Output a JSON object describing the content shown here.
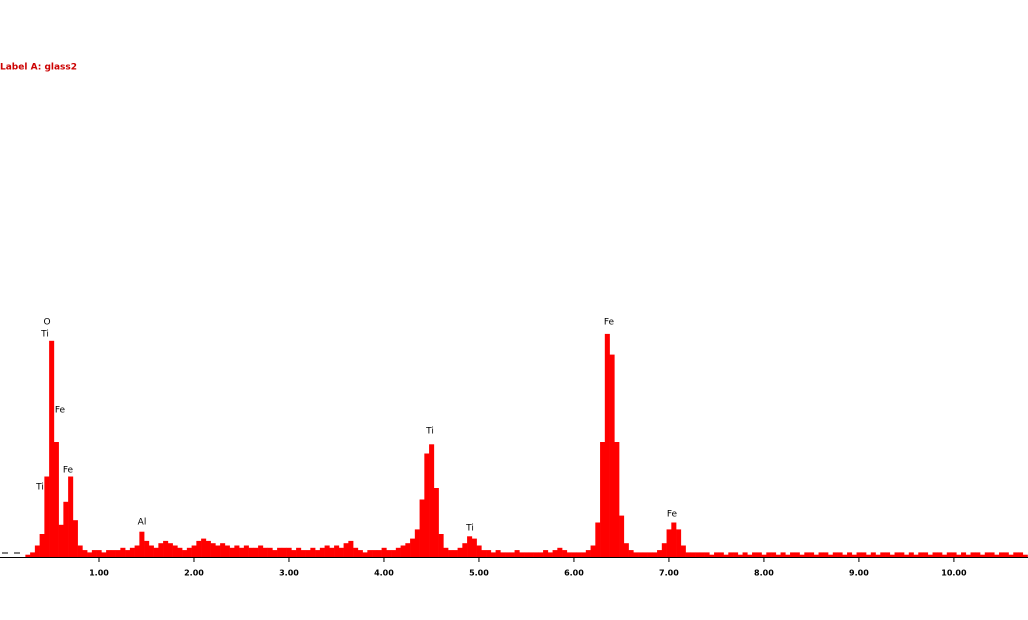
{
  "chart_data": {
    "type": "spectrum",
    "title": "Label A: glass2",
    "color": "#ff0000",
    "xlim": [
      0,
      10.78
    ],
    "ylim": [
      0,
      100
    ],
    "xticks": [
      {
        "value": 1,
        "label": "1.00"
      },
      {
        "value": 2,
        "label": "2.00"
      },
      {
        "value": 3,
        "label": "3.00"
      },
      {
        "value": 4,
        "label": "4.00"
      },
      {
        "value": 5,
        "label": "5.00"
      },
      {
        "value": 6,
        "label": "6.00"
      },
      {
        "value": 7,
        "label": "7.00"
      },
      {
        "value": 8,
        "label": "8.00"
      },
      {
        "value": 9,
        "label": "9.00"
      },
      {
        "value": 10,
        "label": "10.00"
      }
    ],
    "annotations": [
      "O",
      "Ti",
      "Fe",
      "Fe",
      "Ti",
      "Al",
      "Ti",
      "Ti",
      "Fe",
      "Fe"
    ],
    "x": [
      0.25,
      0.3,
      0.35,
      0.4,
      0.45,
      0.5,
      0.55,
      0.6,
      0.65,
      0.7,
      0.75,
      0.8,
      0.85,
      0.9,
      0.95,
      1.0,
      1.05,
      1.1,
      1.15,
      1.2,
      1.25,
      1.3,
      1.35,
      1.4,
      1.45,
      1.5,
      1.55,
      1.6,
      1.65,
      1.7,
      1.75,
      1.8,
      1.85,
      1.9,
      1.95,
      2.0,
      2.05,
      2.1,
      2.15,
      2.2,
      2.25,
      2.3,
      2.35,
      2.4,
      2.45,
      2.5,
      2.55,
      2.6,
      2.65,
      2.7,
      2.75,
      2.8,
      2.85,
      2.9,
      2.95,
      3.0,
      3.05,
      3.1,
      3.15,
      3.2,
      3.25,
      3.3,
      3.35,
      3.4,
      3.45,
      3.5,
      3.55,
      3.6,
      3.65,
      3.7,
      3.75,
      3.8,
      3.85,
      3.9,
      3.95,
      4.0,
      4.05,
      4.1,
      4.15,
      4.2,
      4.25,
      4.3,
      4.35,
      4.4,
      4.45,
      4.5,
      4.55,
      4.6,
      4.65,
      4.7,
      4.75,
      4.8,
      4.85,
      4.9,
      4.95,
      5.0,
      5.05,
      5.1,
      5.15,
      5.2,
      5.25,
      5.3,
      5.35,
      5.4,
      5.45,
      5.5,
      5.55,
      5.6,
      5.65,
      5.7,
      5.75,
      5.8,
      5.85,
      5.9,
      5.95,
      6.0,
      6.05,
      6.1,
      6.15,
      6.2,
      6.25,
      6.3,
      6.35,
      6.4,
      6.45,
      6.5,
      6.55,
      6.6,
      6.65,
      6.7,
      6.75,
      6.8,
      6.85,
      6.9,
      6.95,
      7.0,
      7.05,
      7.1,
      7.15,
      7.2,
      7.25,
      7.3,
      7.35,
      7.4,
      7.45,
      7.5,
      7.55,
      7.6,
      7.65,
      7.7,
      7.75,
      7.8,
      7.85,
      7.9,
      7.95,
      8.0,
      8.05,
      8.1,
      8.15,
      8.2,
      8.25,
      8.3,
      8.35,
      8.4,
      8.45,
      8.5,
      8.55,
      8.6,
      8.65,
      8.7,
      8.75,
      8.8,
      8.85,
      8.9,
      8.95,
      9.0,
      9.05,
      9.1,
      9.15,
      9.2,
      9.25,
      9.3,
      9.35,
      9.4,
      9.45,
      9.5,
      9.55,
      9.6,
      9.65,
      9.7,
      9.75,
      9.8,
      9.85,
      9.9,
      9.95,
      10.0,
      10.05,
      10.1,
      10.15,
      10.2,
      10.25,
      10.3,
      10.35,
      10.4,
      10.45,
      10.5,
      10.55,
      10.6,
      10.65,
      10.7,
      10.75
    ],
    "values": [
      1,
      2,
      5,
      10,
      35,
      94,
      50,
      14,
      24,
      35,
      16,
      5,
      3,
      2,
      3,
      3,
      2,
      3,
      3,
      3,
      4,
      3,
      4,
      5,
      11,
      7,
      5,
      4,
      6,
      7,
      6,
      5,
      4,
      3,
      4,
      5,
      7,
      8,
      7,
      6,
      5,
      6,
      5,
      4,
      5,
      4,
      5,
      4,
      4,
      5,
      4,
      4,
      3,
      4,
      4,
      4,
      3,
      4,
      3,
      3,
      4,
      3,
      4,
      5,
      4,
      5,
      4,
      6,
      7,
      4,
      3,
      2,
      3,
      3,
      3,
      4,
      3,
      3,
      4,
      5,
      6,
      8,
      12,
      25,
      45,
      49,
      30,
      10,
      4,
      3,
      3,
      4,
      6,
      9,
      8,
      5,
      3,
      3,
      2,
      3,
      2,
      2,
      2,
      3,
      2,
      2,
      2,
      2,
      2,
      3,
      2,
      3,
      4,
      3,
      2,
      2,
      2,
      2,
      3,
      5,
      15,
      50,
      97,
      88,
      50,
      18,
      6,
      3,
      2,
      2,
      2,
      2,
      2,
      3,
      6,
      12,
      15,
      12,
      5,
      2,
      2,
      2,
      2,
      2,
      1,
      2,
      2,
      1,
      2,
      2,
      1,
      2,
      1,
      2,
      2,
      1,
      2,
      2,
      1,
      2,
      1,
      2,
      2,
      1,
      2,
      2,
      1,
      2,
      2,
      1,
      2,
      2,
      1,
      2,
      1,
      2,
      2,
      1,
      2,
      1,
      2,
      2,
      1,
      2,
      2,
      1,
      2,
      1,
      2,
      2,
      1,
      2,
      2,
      1,
      2,
      2,
      1,
      2,
      1,
      2,
      2,
      1,
      2,
      2,
      1,
      2,
      2,
      1,
      2,
      2,
      1
    ]
  }
}
